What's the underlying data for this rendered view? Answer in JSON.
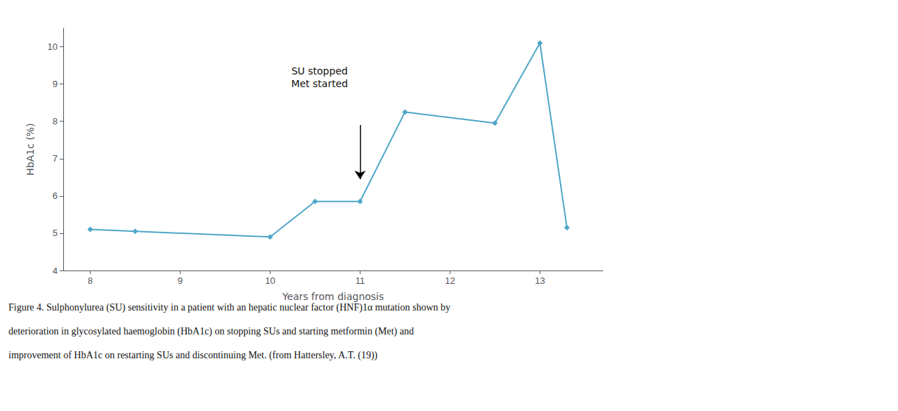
{
  "chart_data": {
    "type": "line",
    "x": [
      8,
      8.5,
      10,
      10.5,
      11,
      11.5,
      12.5,
      13,
      13.3
    ],
    "values": [
      5.1,
      5.05,
      4.9,
      5.85,
      5.85,
      8.25,
      7.95,
      10.1,
      5.15
    ],
    "color": "#4da6c8",
    "marker": "diamond",
    "xlim": [
      7.7,
      13.7
    ],
    "ylim": [
      4,
      10.5
    ],
    "xticks": [
      8,
      9,
      10,
      11,
      12,
      13
    ],
    "yticks": [
      4,
      5,
      6,
      7,
      8,
      9,
      10
    ],
    "xlabel": "Years from diagnosis",
    "ylabel": "HbA1c (%)",
    "grid": false,
    "annotations": [
      {
        "text": "SU stopped\nMet started",
        "x": 10.55,
        "y": 8.75,
        "arrow": {
          "from": [
            11.0,
            7.9
          ],
          "to": [
            11.0,
            6.45
          ]
        }
      }
    ],
    "caption": [
      "Figure 4. Sulphonylurea (SU) sensitivity in a patient with an hepatic nuclear factor (HNF)1α mutation shown by",
      "deterioration in glycosylated haemoglobin (HbA1c) on stopping SUs and starting metformin (Met) and",
      "improvement of HbA1c on restarting SUs and discontinuing Met. (from Hattersley, A.T. (19))"
    ]
  }
}
